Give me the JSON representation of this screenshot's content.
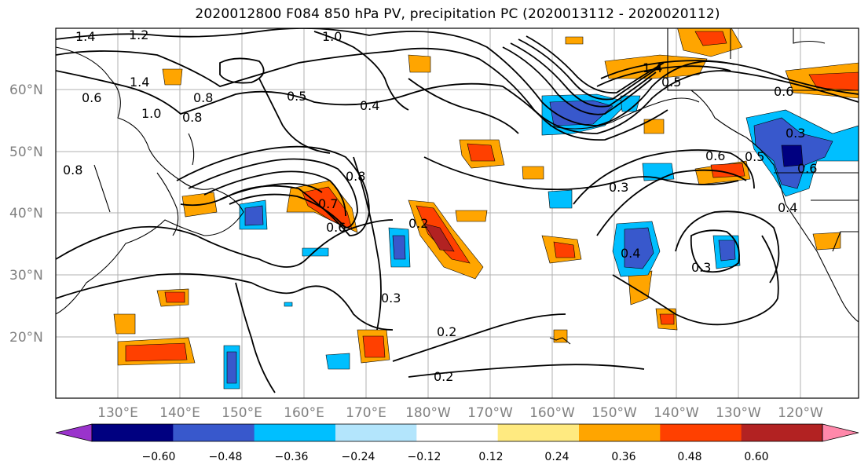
{
  "title": "2020012800 F084 850 hPa PV, precipitation PC (2020013112 - 2020020112)",
  "map": {
    "lon_labels": [
      "130°E",
      "140°E",
      "150°E",
      "160°E",
      "170°E",
      "180°W",
      "170°W",
      "160°W",
      "150°W",
      "140°W",
      "130°W",
      "120°W"
    ],
    "lat_labels": [
      "60°N",
      "50°N",
      "40°N",
      "30°N",
      "20°N"
    ],
    "grid": true,
    "contour_labels": [
      "1.4",
      "1.2",
      "1.0",
      "1.4",
      "1.0",
      "0.8",
      "0.5",
      "0.4",
      "0.8",
      "0.6",
      "0.8",
      "0.8",
      "0.7",
      "0.6",
      "0.2",
      "0.3",
      "0.2",
      "0.2",
      "0.3",
      "0.4",
      "0.3",
      "0.6",
      "0.5",
      "0.3",
      "0.6",
      "0.4",
      "1.4",
      "0.5",
      "0.6"
    ]
  },
  "colorbar": {
    "tick_labels": [
      "−0.60",
      "−0.48",
      "−0.36",
      "−0.24",
      "−0.12",
      "0.12",
      "0.24",
      "0.36",
      "0.48",
      "0.60"
    ],
    "colors": [
      "#9a33cc",
      "#000080",
      "#3858cc",
      "#00bfff",
      "#b3e5fc",
      "#ffffff",
      "#ffea80",
      "#ffa500",
      "#ff4000",
      "#b22222",
      "#ff88aa"
    ]
  }
}
